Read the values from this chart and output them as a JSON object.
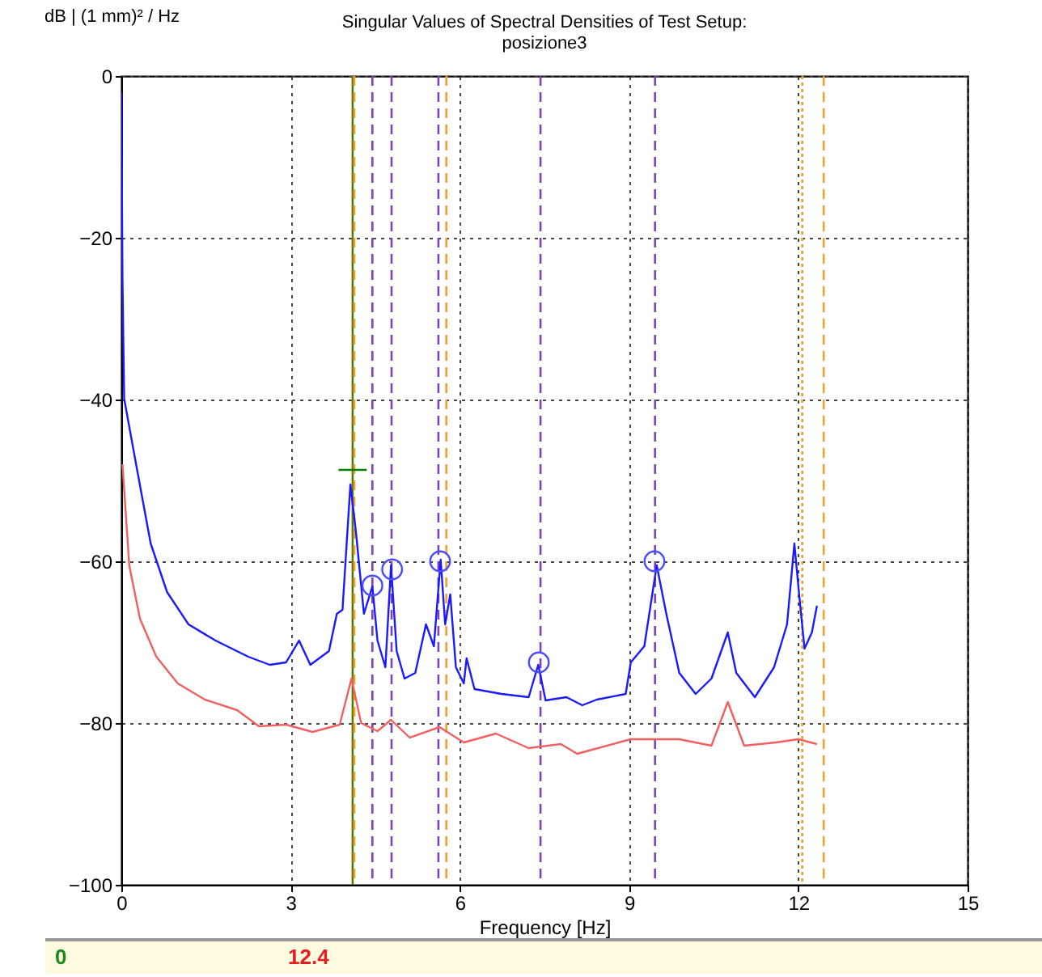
{
  "chart_data": {
    "type": "line",
    "title": "Singular Values of Spectral Densities of Test Setup:",
    "subtitle": "posizione3",
    "xlabel": "Frequency [Hz]",
    "ylabel": "dB | (1 mm)² / Hz",
    "xlim": [
      0,
      15
    ],
    "xticks": [
      0,
      3,
      6,
      9,
      12,
      15
    ],
    "ylim": [
      -100,
      0
    ],
    "yticks": [
      -100,
      -80,
      -60,
      -40,
      -20,
      0
    ],
    "grid": true,
    "series": [
      {
        "color": "#1a1aff",
        "x": [
          0,
          0.02,
          0.05,
          0.29,
          0.52,
          0.81,
          1.19,
          1.67,
          2.25,
          2.63,
          2.92,
          3.15,
          3.35,
          3.68,
          3.82,
          3.92,
          4.06,
          4.16,
          4.3,
          4.45,
          4.54,
          4.68,
          4.78,
          4.88,
          5.02,
          5.21,
          5.4,
          5.54,
          5.66,
          5.74,
          5.83,
          5.93,
          6.07,
          6.12,
          6.26,
          6.74,
          7.22,
          7.39,
          7.52,
          7.89,
          8.17,
          8.43,
          8.94,
          9.03,
          9.27,
          9.49,
          9.66,
          9.89,
          10.18,
          10.46,
          10.75,
          10.9,
          11.23,
          11.57,
          11.8,
          11.93,
          12.01,
          12.11,
          12.24,
          12.33
        ],
        "values": [
          -2,
          -25,
          -39.9,
          -49.1,
          -57.8,
          -63.8,
          -67.8,
          -69.8,
          -71.8,
          -72.8,
          -72.5,
          -69.8,
          -72.8,
          -71.1,
          -66.5,
          -66,
          -50.5,
          -56.5,
          -66.5,
          -63.1,
          -69.8,
          -73.1,
          -60.5,
          -71.1,
          -74.5,
          -73.8,
          -67.8,
          -70.5,
          -59.8,
          -67.8,
          -64.1,
          -73.1,
          -75.1,
          -72,
          -75.8,
          -76.4,
          -76.8,
          -72.8,
          -77.2,
          -76.8,
          -77.8,
          -77.1,
          -76.4,
          -72.5,
          -70.5,
          -60.5,
          -66.5,
          -73.8,
          -76.4,
          -74.5,
          -68.8,
          -73.8,
          -76.8,
          -73.1,
          -67.8,
          -57.8,
          -63.8,
          -70.8,
          -68.8,
          -65.5
        ]
      },
      {
        "color": "#f06060",
        "x": [
          0.02,
          0.14,
          0.33,
          0.62,
          1,
          1.48,
          2.05,
          2.44,
          2.92,
          3.39,
          3.87,
          4.08,
          4.25,
          4.54,
          4.78,
          5.11,
          5.64,
          6.07,
          6.64,
          7.22,
          7.79,
          8.08,
          9.03,
          9.89,
          10.46,
          10.75,
          11.04,
          11.6,
          12,
          12.33
        ],
        "values": [
          -48,
          -60.5,
          -67.1,
          -71.8,
          -75.1,
          -77.1,
          -78.4,
          -80.4,
          -80.2,
          -81.1,
          -80.2,
          -74.5,
          -80,
          -81,
          -79.6,
          -81.8,
          -80.5,
          -82.4,
          -81.3,
          -83.1,
          -82.6,
          -83.8,
          -82,
          -82,
          -82.8,
          -77.4,
          -82.8,
          -82.4,
          -82,
          -82.6
        ]
      },
      {
        "type": "scatter",
        "marker": "circle",
        "color": "#4a4aff",
        "x": [
          4.45,
          4.8,
          5.65,
          7.4,
          9.45
        ],
        "values": [
          -63,
          -61,
          -60,
          -72.5,
          -60
        ]
      },
      {
        "type": "line",
        "color": "#008000",
        "x": [
          3.85,
          4.35
        ],
        "values": [
          -48.7,
          -48.7
        ]
      }
    ],
    "ref_lines": [
      {
        "axis": "x",
        "value": 4.1,
        "color": "#5a7a00",
        "line_style": "solid"
      },
      {
        "axis": "x",
        "value": 4.13,
        "color": "#f0a030",
        "line_style": "dashed"
      },
      {
        "axis": "x",
        "value": 4.45,
        "color": "#8040c0",
        "line_style": "dashed"
      },
      {
        "axis": "x",
        "value": 4.79,
        "color": "#8040c0",
        "line_style": "dashed"
      },
      {
        "axis": "x",
        "value": 5.62,
        "color": "#8040c0",
        "line_style": "dashed"
      },
      {
        "axis": "x",
        "value": 5.76,
        "color": "#f0a030",
        "line_style": "dashed"
      },
      {
        "axis": "x",
        "value": 7.43,
        "color": "#8040c0",
        "line_style": "dashed"
      },
      {
        "axis": "x",
        "value": 9.46,
        "color": "#8040c0",
        "line_style": "dashed"
      },
      {
        "axis": "x",
        "value": 12.07,
        "color": "#f0a030",
        "line_style": "dotted"
      },
      {
        "axis": "x",
        "value": 12.45,
        "color": "#f0a030",
        "line_style": "dashed"
      }
    ],
    "annotations": [
      "0",
      "12.4"
    ]
  }
}
